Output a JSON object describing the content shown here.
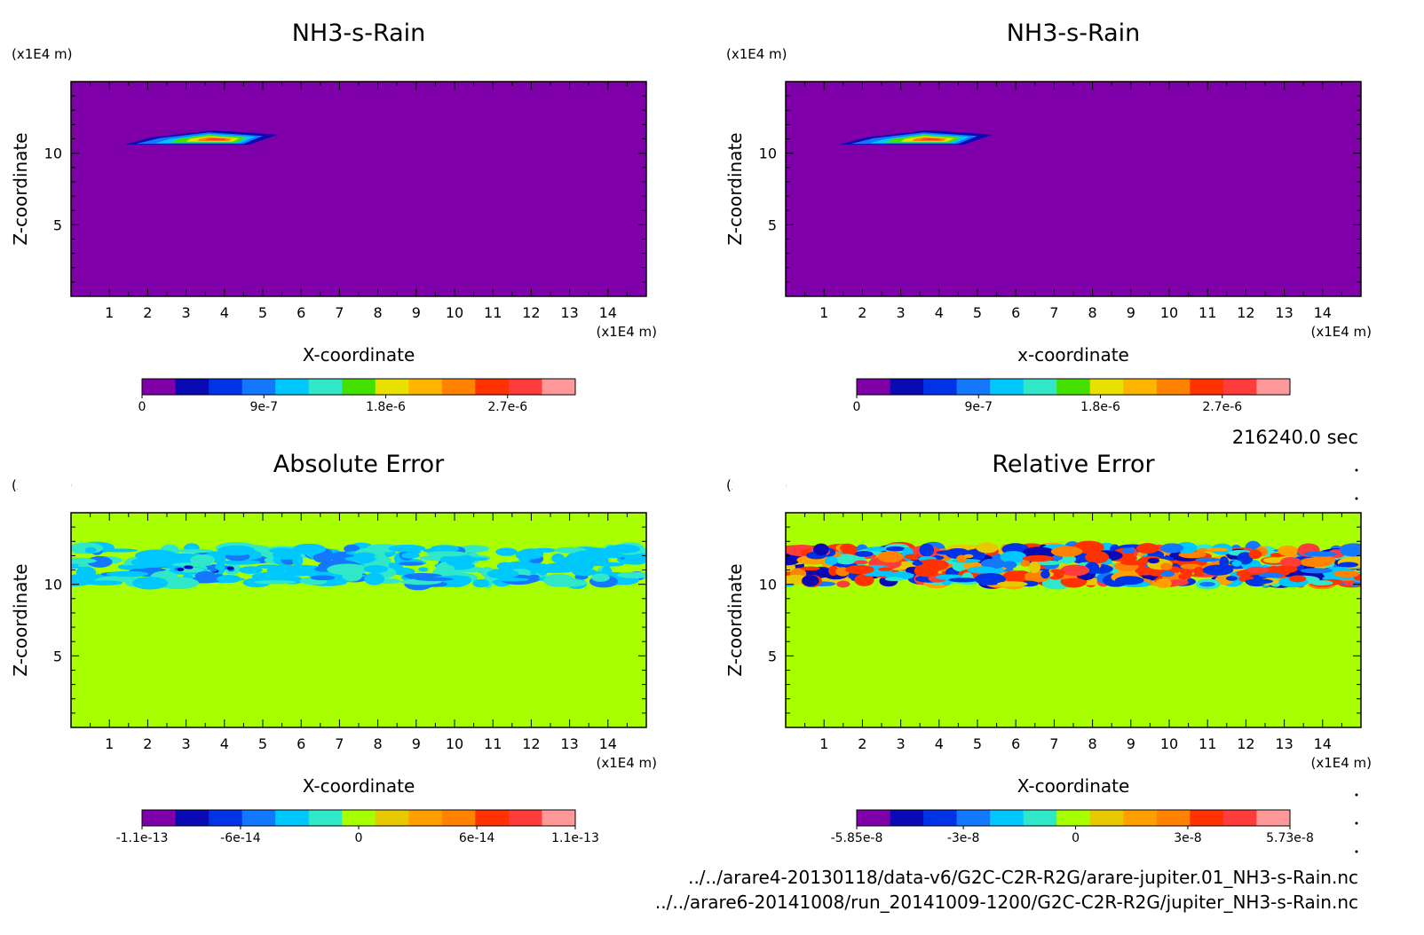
{
  "time_label": "216240.0 sec",
  "file_paths": [
    "../../arare4-20130118/data-v6/G2C-C2R-R2G/arare-jupiter.01_NH3-s-Rain.nc",
    "../../arare6-20141008/run_20141009-1200/G2C-C2R-R2G/jupiter_NH3-s-Rain.nc"
  ],
  "chart_data": [
    {
      "type": "heatmap",
      "title": "NH3-s-Rain",
      "xlabel": "X-coordinate",
      "ylabel": "Z-coordinate",
      "x_unit": "(x1E4 m)",
      "y_unit": "(x1E4 m)",
      "xlim": [
        0,
        15
      ],
      "ylim": [
        0,
        15
      ],
      "x_ticks": [
        "1",
        "2",
        "3",
        "4",
        "5",
        "6",
        "7",
        "8",
        "9",
        "10",
        "11",
        "12",
        "13",
        "14"
      ],
      "y_ticks": [
        "5",
        "10"
      ],
      "field": "rain_patch",
      "colorbar": {
        "colors": [
          "#7f00a8",
          "#0a0ab4",
          "#0032e6",
          "#1478ff",
          "#00c8ff",
          "#30e8c8",
          "#44e000",
          "#e8e000",
          "#ffb400",
          "#ff8200",
          "#ff3200",
          "#ff3c3c",
          "#ff9898"
        ],
        "tick_labels": [
          "0",
          "9e-7",
          "1.8e-6",
          "2.7e-6"
        ],
        "range": [
          0,
          3.2e-06
        ]
      }
    },
    {
      "type": "heatmap",
      "title": "NH3-s-Rain",
      "xlabel": "x-coordinate",
      "ylabel": "Z-coordinate",
      "x_unit": "(x1E4 m)",
      "y_unit": "(x1E4 m)",
      "xlim": [
        0,
        15
      ],
      "ylim": [
        0,
        15
      ],
      "x_ticks": [
        "1",
        "2",
        "3",
        "4",
        "5",
        "6",
        "7",
        "8",
        "9",
        "10",
        "11",
        "12",
        "13",
        "14"
      ],
      "y_ticks": [
        "5",
        "10"
      ],
      "field": "rain_patch",
      "colorbar": {
        "colors": [
          "#7f00a8",
          "#0a0ab4",
          "#0032e6",
          "#1478ff",
          "#00c8ff",
          "#30e8c8",
          "#44e000",
          "#e8e000",
          "#ffb400",
          "#ff8200",
          "#ff3200",
          "#ff3c3c",
          "#ff9898"
        ],
        "tick_labels": [
          "0",
          "9e-7",
          "1.8e-6",
          "2.7e-6"
        ],
        "range": [
          0,
          3.2e-06
        ]
      }
    },
    {
      "type": "heatmap",
      "title": "Absolute Error",
      "xlabel": "X-coordinate",
      "ylabel": "Z-coordinate",
      "x_unit": "(x1E4 m)",
      "y_unit": "(x1E4 m)",
      "xlim": [
        0,
        15
      ],
      "ylim": [
        0,
        15
      ],
      "x_ticks": [
        "1",
        "2",
        "3",
        "4",
        "5",
        "6",
        "7",
        "8",
        "9",
        "10",
        "11",
        "12",
        "13",
        "14"
      ],
      "y_ticks": [
        "5",
        "10"
      ],
      "field": "abs_error",
      "colorbar": {
        "colors": [
          "#7f00a8",
          "#0a0ab4",
          "#0032e6",
          "#1478ff",
          "#00c8ff",
          "#30e8c8",
          "#a8ff00",
          "#e8c800",
          "#ffa000",
          "#ff8200",
          "#ff3200",
          "#ff3c3c",
          "#ff9898"
        ],
        "tick_labels": [
          "-1.1e-13",
          "-6e-14",
          "0",
          "6e-14",
          "1.1e-13"
        ],
        "range": [
          -1.1e-13,
          1.1e-13
        ]
      }
    },
    {
      "type": "heatmap",
      "title": "Relative Error",
      "xlabel": "X-coordinate",
      "ylabel": "Z-coordinate",
      "x_unit": "(x1E4 m)",
      "y_unit": "(x1E4 m)",
      "xlim": [
        0,
        15
      ],
      "ylim": [
        0,
        15
      ],
      "x_ticks": [
        "1",
        "2",
        "3",
        "4",
        "5",
        "6",
        "7",
        "8",
        "9",
        "10",
        "11",
        "12",
        "13",
        "14"
      ],
      "y_ticks": [
        "5",
        "10"
      ],
      "field": "rel_error",
      "colorbar": {
        "colors": [
          "#7f00a8",
          "#0a0ab4",
          "#0032e6",
          "#1478ff",
          "#00c8ff",
          "#30e8c8",
          "#a8ff00",
          "#e8c800",
          "#ffa000",
          "#ff8200",
          "#ff3200",
          "#ff3c3c",
          "#ff9898"
        ],
        "tick_labels": [
          "-5.85e-8",
          "-3e-8",
          "0",
          "3e-8",
          "5.73e-8"
        ],
        "range": [
          -5.85e-08,
          5.73e-08
        ]
      }
    }
  ]
}
